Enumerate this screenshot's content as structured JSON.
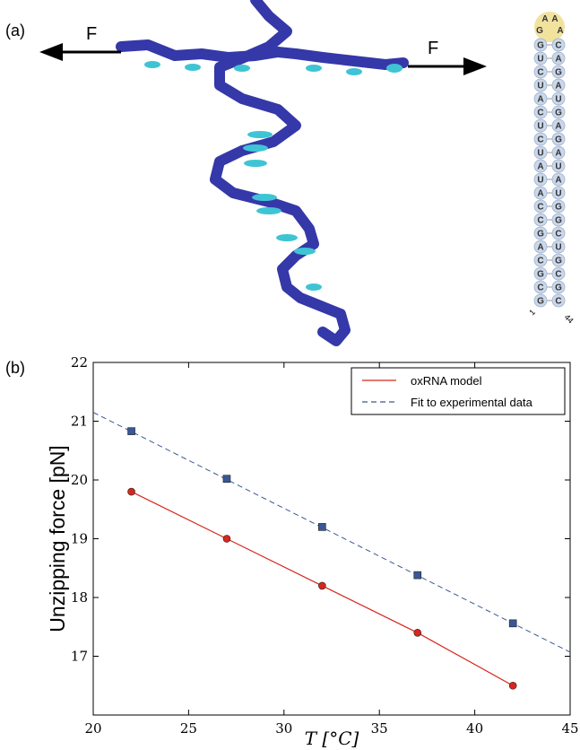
{
  "panel_a": {
    "label": "(a)",
    "force_labels": [
      "F",
      "F"
    ],
    "hairpin": {
      "loop": [
        "G",
        "A",
        "A",
        "A"
      ],
      "pairs": [
        [
          "G",
          "C"
        ],
        [
          "U",
          "A"
        ],
        [
          "C",
          "G"
        ],
        [
          "U",
          "A"
        ],
        [
          "A",
          "U"
        ],
        [
          "C",
          "G"
        ],
        [
          "U",
          "A"
        ],
        [
          "C",
          "G"
        ],
        [
          "U",
          "A"
        ],
        [
          "A",
          "U"
        ],
        [
          "U",
          "A"
        ],
        [
          "A",
          "U"
        ],
        [
          "C",
          "G"
        ],
        [
          "C",
          "G"
        ],
        [
          "G",
          "C"
        ],
        [
          "A",
          "U"
        ],
        [
          "C",
          "G"
        ],
        [
          "G",
          "C"
        ],
        [
          "C",
          "G"
        ],
        [
          "G",
          "C"
        ]
      ],
      "ends": [
        "1",
        "44"
      ]
    }
  },
  "chart_data": {
    "type": "line",
    "panel_label": "(b)",
    "x_label": "T [°C]",
    "y_label": "Unzipping force [pN]",
    "xlim": [
      20,
      45
    ],
    "xticks": [
      20,
      25,
      30,
      35,
      40,
      45
    ],
    "ylim": [
      16,
      22
    ],
    "yticks": [
      17,
      18,
      19,
      20,
      21,
      22
    ],
    "legend": "upper right",
    "series": [
      {
        "name": "oxRNA model",
        "color": "#d7261e",
        "marker": "circle",
        "linestyle": "solid",
        "x": [
          22,
          27,
          32,
          37,
          42
        ],
        "values": [
          19.8,
          19.0,
          18.2,
          17.4,
          16.5
        ]
      },
      {
        "name": "Fit to experimental data",
        "color": "#3a5796",
        "marker": "square",
        "linestyle": "dashed",
        "x": [
          22,
          27,
          32,
          37,
          42
        ],
        "values": [
          20.83,
          20.02,
          19.2,
          18.38,
          17.56
        ],
        "fit_line": {
          "x": [
            20,
            45
          ],
          "values": [
            21.15,
            17.07
          ]
        }
      }
    ]
  }
}
